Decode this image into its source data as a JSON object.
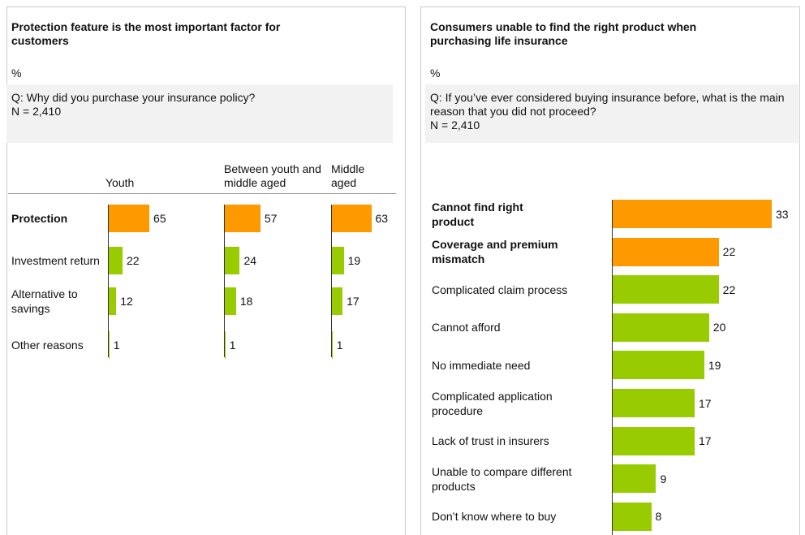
{
  "chart_data": [
    {
      "type": "bar-multiples",
      "title": "Protection feature is the most important factor for customers",
      "subtitle": "%",
      "question": "Q: Why did you purchase your insurance policy?",
      "sample": "N = 2,410",
      "categories": [
        "Protection",
        "Investment return",
        "Alternative to savings",
        "Other reasons"
      ],
      "highlighted": [
        true,
        false,
        false,
        false
      ],
      "color": "#99cc00",
      "highlight_color": "#ff9900",
      "series": [
        {
          "name": "Youth",
          "values": [
            65,
            22,
            12,
            1
          ]
        },
        {
          "name": "Between youth and middle aged",
          "values": [
            57,
            24,
            18,
            1
          ]
        },
        {
          "name": "Middle aged",
          "values": [
            63,
            19,
            17,
            1
          ]
        }
      ]
    },
    {
      "type": "bar",
      "title": "Consumers unable to find the right product when purchasing life insurance",
      "subtitle": "%",
      "question": "Q: If you’ve ever considered buying insurance before, what is the main reason that you did not proceed?",
      "sample": "N = 2,410",
      "categories": [
        "Cannot find right product",
        "Coverage and premium mismatch",
        "Complicated claim process",
        "Cannot afford",
        "No immediate need",
        "Complicated application procedure",
        "Lack of trust in insurers",
        "Unable to compare different products",
        "Don’t know where to buy"
      ],
      "values": [
        33,
        22,
        22,
        20,
        19,
        17,
        17,
        9,
        8
      ],
      "highlighted": [
        true,
        true,
        false,
        false,
        false,
        false,
        false,
        false,
        false
      ],
      "color": "#99cc00",
      "highlight_color": "#ff9900"
    }
  ]
}
